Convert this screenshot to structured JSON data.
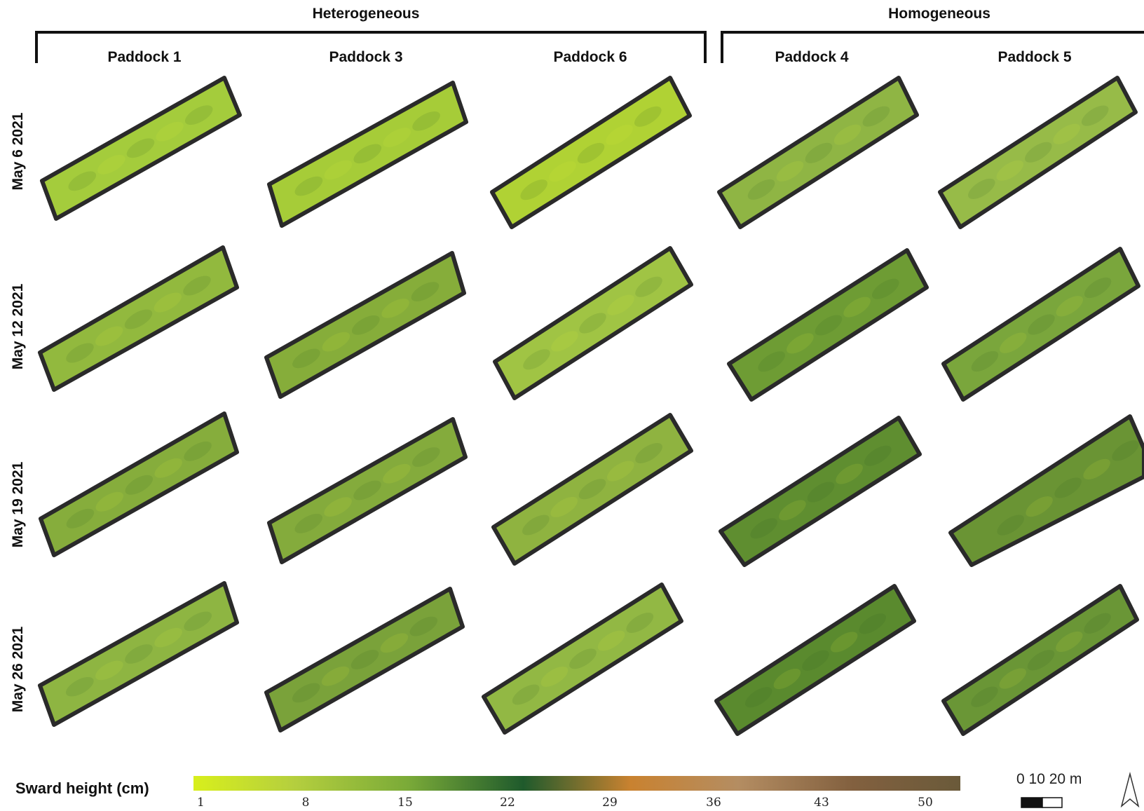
{
  "groups": [
    {
      "label": "Heterogeneous"
    },
    {
      "label": "Homogeneous"
    }
  ],
  "columns": [
    {
      "label": "Paddock 1"
    },
    {
      "label": "Paddock 3"
    },
    {
      "label": "Paddock 6"
    },
    {
      "label": "Paddock 4"
    },
    {
      "label": "Paddock 5"
    }
  ],
  "rows": [
    {
      "label": "May 6 2021"
    },
    {
      "label": "May 12 2021"
    },
    {
      "label": "May 19 2021"
    },
    {
      "label": "May 26 2021"
    }
  ],
  "legend": {
    "title": "Sward height (cm)",
    "ticks": [
      "1",
      "8",
      "15",
      "22",
      "29",
      "36",
      "43",
      "50"
    ],
    "colors": [
      "#d8ef1c",
      "#a9c24a",
      "#66a032",
      "#1f5a2c",
      "#c98230",
      "#b08a5f",
      "#7a5a3a",
      "#6a5a3a"
    ]
  },
  "scale_bar": {
    "label": "0  10 20 m"
  },
  "north_arrow": {
    "icon": "north-arrow-icon"
  },
  "fills": [
    [
      "#a4cc3c",
      "#a6cc38",
      "#b0d234"
    ],
    [
      "#92b93e",
      "#86ad3a",
      "#a0c444"
    ],
    [
      "#86ad3c",
      "#84ab3c",
      "#8fb340"
    ],
    [
      "#8eb542",
      "#7aa23a",
      "#92b844"
    ]
  ],
  "fills_homog": [
    [
      "#8fb544",
      "#97bb48"
    ],
    [
      "#6e9c34",
      "#7aa63c"
    ],
    [
      "#5f8e30",
      "#6a9434"
    ],
    [
      "#5a8a2e",
      "#6a9636"
    ]
  ]
}
